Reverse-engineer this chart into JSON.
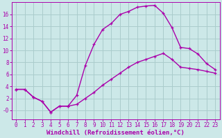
{
  "xlabel": "Windchill (Refroidissement éolien,°C)",
  "background_color": "#cce8e8",
  "grid_color": "#aacccc",
  "line_color": "#aa00aa",
  "xlim": [
    -0.5,
    23.5
  ],
  "ylim": [
    -1.5,
    18
  ],
  "xticks": [
    0,
    1,
    2,
    3,
    4,
    5,
    6,
    7,
    8,
    9,
    10,
    11,
    12,
    13,
    14,
    15,
    16,
    17,
    18,
    19,
    20,
    21,
    22,
    23
  ],
  "yticks": [
    0,
    2,
    4,
    6,
    8,
    10,
    12,
    14,
    16
  ],
  "ytick_labels": [
    "-0",
    "2",
    "4",
    "6",
    "8",
    "10",
    "12",
    "14",
    "16"
  ],
  "line1_x": [
    0,
    1,
    2,
    3,
    4,
    5,
    6,
    7,
    8,
    9,
    10,
    11,
    12,
    13,
    14,
    15,
    16,
    17,
    18,
    19,
    20,
    21,
    22,
    23
  ],
  "line1_y": [
    3.5,
    3.5,
    2.2,
    1.5,
    -0.3,
    0.7,
    0.7,
    2.5,
    7.5,
    11.0,
    13.5,
    14.5,
    16.0,
    16.5,
    17.2,
    17.4,
    17.5,
    16.2,
    13.8,
    10.5,
    10.3,
    9.4,
    7.8,
    6.8
  ],
  "line2_x": [
    0,
    1,
    2,
    3,
    4,
    5,
    6,
    7,
    8,
    9,
    10,
    11,
    12,
    13,
    14,
    15,
    16,
    17,
    18,
    19,
    20,
    21,
    22,
    23
  ],
  "line2_y": [
    3.5,
    3.5,
    2.2,
    1.5,
    -0.3,
    0.7,
    0.7,
    1.0,
    2.0,
    3.0,
    4.2,
    5.2,
    6.2,
    7.2,
    8.0,
    8.5,
    9.0,
    9.5,
    8.5,
    7.2,
    7.0,
    6.8,
    6.5,
    6.2
  ],
  "marker_size": 3.5,
  "line_width": 1.0,
  "tick_labelsize": 5.5,
  "xlabel_fontsize": 6.5
}
